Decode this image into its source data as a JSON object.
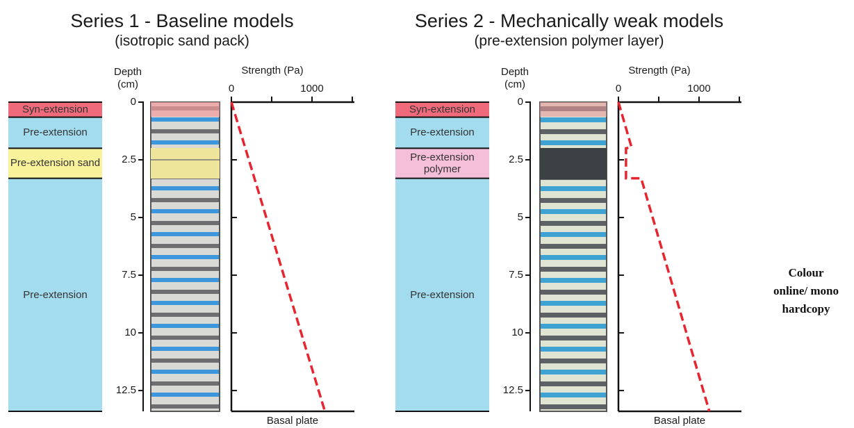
{
  "chart_data": [
    {
      "type": "line",
      "title": "Series 1 - Baseline models",
      "subtitle": "(isotropic sand pack)",
      "x_label": "Strength (Pa)",
      "y_label": [
        "Depth",
        "(cm)"
      ],
      "bottom_label": "Basal plate",
      "layers": [
        {
          "name": "Syn-extension",
          "top": 0,
          "bottom": 0.65,
          "color": "#ef6b7b"
        },
        {
          "name": "Pre-extension",
          "top": 0.65,
          "bottom": 2.0,
          "color": "#a4dcef"
        },
        {
          "name": "Pre-extension sand",
          "top": 2.0,
          "bottom": 3.3,
          "color": "#f8f29b"
        },
        {
          "name": "Pre-extension",
          "top": 3.3,
          "bottom": 13.4,
          "color": "#a4dcef"
        }
      ],
      "x": [
        0,
        1160
      ],
      "y": [
        0,
        13.4
      ],
      "color": "#e8242f",
      "xlim": [
        0,
        1526
      ],
      "xticks": [
        0,
        1000
      ],
      "minor_xticks": [
        500,
        1500
      ],
      "ylim": [
        0,
        13.4
      ],
      "yticks": [
        0,
        2.5,
        5,
        7.5,
        10,
        12.5
      ]
    },
    {
      "type": "line",
      "title": "Series 2 - Mechanically weak models",
      "subtitle": "(pre-extension polymer layer)",
      "x_label": "Strength (Pa)",
      "y_label": [
        "Depth",
        "(cm)"
      ],
      "bottom_label": "Basal plate",
      "layers": [
        {
          "name": "Syn-extension",
          "top": 0,
          "bottom": 0.65,
          "color": "#ef6b7b"
        },
        {
          "name": "Pre-extension",
          "top": 0.65,
          "bottom": 2.0,
          "color": "#a4dcef"
        },
        {
          "name": "Pre-extension polymer",
          "top": 2.0,
          "bottom": 3.3,
          "color": "#f5bfd9"
        },
        {
          "name": "Pre-extension",
          "top": 3.3,
          "bottom": 13.4,
          "color": "#a4dcef"
        }
      ],
      "x": [
        0,
        162,
        94,
        94,
        282,
        1128
      ],
      "y": [
        0,
        1.95,
        2.0,
        3.3,
        3.3,
        13.4
      ],
      "color": "#e8242f",
      "xlim": [
        0,
        1526
      ],
      "xticks": [
        0,
        1000
      ],
      "minor_xticks": [
        500,
        1500
      ],
      "ylim": [
        0,
        13.4
      ],
      "yticks": [
        0,
        2.5,
        5,
        7.5,
        10,
        12.5
      ]
    }
  ],
  "note": "Colour online/ mono hardcopy"
}
